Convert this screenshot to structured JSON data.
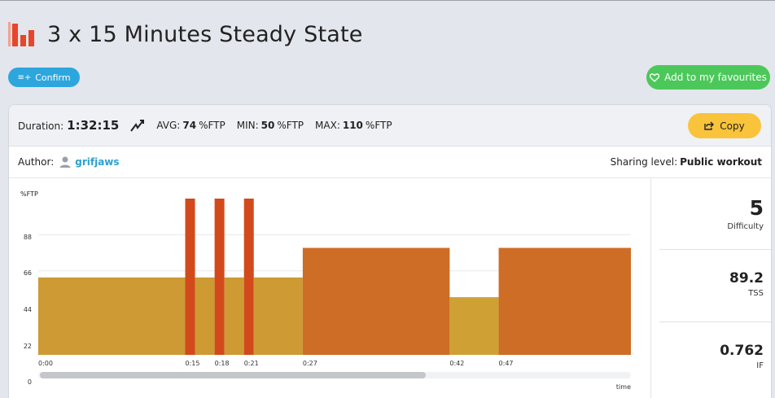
{
  "header": {
    "title": "3 x 15 Minutes Steady State",
    "logo_icon": "bar-chart-logo-icon"
  },
  "actions": {
    "confirm_label": "Confirm",
    "favourites_label": "Add to my favourites",
    "copy_label": "Copy"
  },
  "stats": {
    "duration_label": "Duration:",
    "duration_value": "1:32:15",
    "avg_label": "AVG:",
    "avg_value": "74",
    "min_label": "MIN:",
    "min_value": "50",
    "max_label": "MAX:",
    "max_value": "110",
    "unit": "%FTP"
  },
  "author": {
    "label": "Author:",
    "name": "grifjaws",
    "sharing_label": "Sharing level:",
    "sharing_value": "Public workout"
  },
  "metrics": [
    {
      "value": "5",
      "label": "Difficulty"
    },
    {
      "value": "89.2",
      "label": "TSS"
    },
    {
      "value": "0.762",
      "label": "IF"
    }
  ],
  "colors": {
    "accent_blue": "#2da6de",
    "favourite_green": "#4cc85a",
    "copy_yellow": "#f9c43b",
    "zone_tempo": "#cd9a34",
    "zone_threshold": "#cd6d26",
    "zone_vo2": "#d24a1c",
    "zone_endurance": "#cfa135"
  },
  "chart_data": {
    "type": "bar",
    "ylabel": "%FTP",
    "xlabel": "time",
    "yticks": [
      0,
      22,
      44,
      66,
      88
    ],
    "xticks": [
      "0:00",
      "0:15",
      "0:18",
      "0:21",
      "0:27",
      "0:42",
      "0:47"
    ],
    "ylim": [
      0,
      110
    ],
    "segments": [
      {
        "start_min": 0,
        "end_min": 15,
        "power": 62,
        "zone": "tempo"
      },
      {
        "start_min": 15,
        "end_min": 16,
        "power": 110,
        "zone": "vo2"
      },
      {
        "start_min": 16,
        "end_min": 18,
        "power": 62,
        "zone": "tempo"
      },
      {
        "start_min": 18,
        "end_min": 19,
        "power": 110,
        "zone": "vo2"
      },
      {
        "start_min": 19,
        "end_min": 21,
        "power": 62,
        "zone": "tempo"
      },
      {
        "start_min": 21,
        "end_min": 22,
        "power": 110,
        "zone": "vo2"
      },
      {
        "start_min": 22,
        "end_min": 27,
        "power": 62,
        "zone": "tempo"
      },
      {
        "start_min": 27,
        "end_min": 42,
        "power": 80,
        "zone": "threshold"
      },
      {
        "start_min": 42,
        "end_min": 47,
        "power": 50,
        "zone": "endurance"
      },
      {
        "start_min": 47,
        "end_min": 60.5,
        "power": 80,
        "zone": "threshold"
      }
    ]
  }
}
